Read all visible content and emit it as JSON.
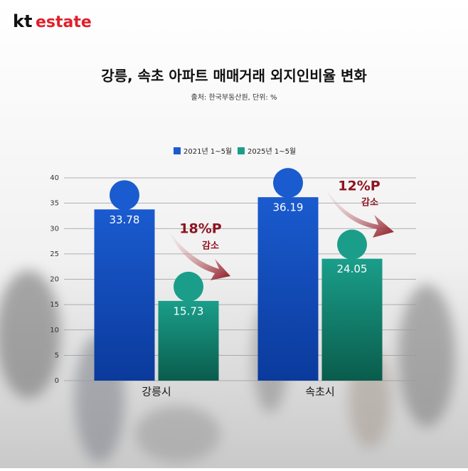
{
  "logo": {
    "brand": "kt",
    "name": "estate"
  },
  "chart_data": {
    "type": "bar",
    "title": "강릉, 속초 아파트 매매거래 외지인비율 변화",
    "subtitle": "출처: 한국부동산원, 단위: %",
    "categories": [
      "강릉시",
      "속초시"
    ],
    "series": [
      {
        "name": "2021년 1~5월",
        "color": "#1a5bcf",
        "values": [
          33.78,
          36.19
        ]
      },
      {
        "name": "2025년 1~5월",
        "color": "#1a9e8a",
        "values": [
          15.73,
          24.05
        ]
      }
    ],
    "ylim": [
      0,
      40
    ],
    "yticks": [
      0,
      5,
      10,
      15,
      20,
      25,
      30,
      35,
      40
    ],
    "grid": true,
    "annotations": [
      {
        "text": "18%P",
        "subtext": "감소"
      },
      {
        "text": "12%P",
        "subtext": "감소"
      }
    ]
  }
}
